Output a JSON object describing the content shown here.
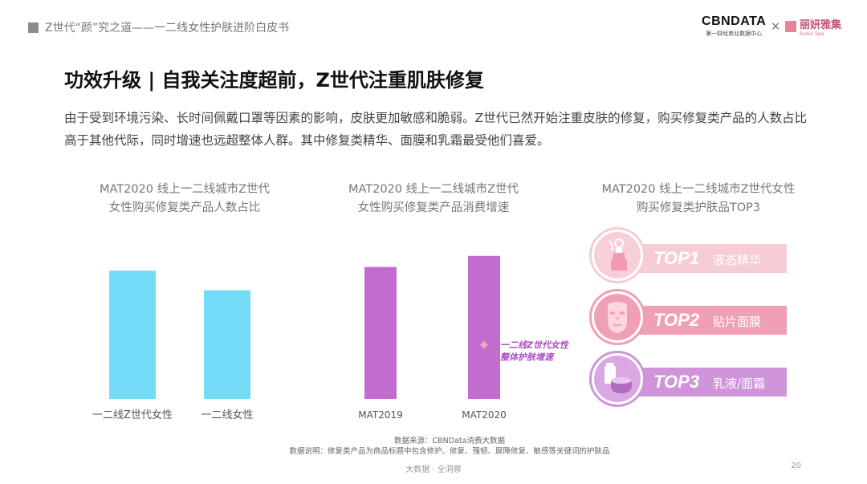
{
  "header": {
    "breadcrumb": "Z世代“颜”究之道——一二线女性护肤进阶白皮书",
    "logo_cbn": "CBNDATA",
    "logo_cbn_sub": "第一财经商业数据中心",
    "logo_times": "×",
    "logo_lyj": "丽妍雅集",
    "logo_lyj_sub": "Rubin Spa"
  },
  "title": "功效升级 | 自我关注度超前，Z世代注重肌肤修复",
  "description": "由于受到环境污染、长时间佩戴口罩等因素的影响，皮肤更加敏感和脆弱。Z世代已然开始注重皮肤的修复，购买修复类产品的人数占比高于其他代际，同时增速也远超整体人群。其中修复类精华、面膜和乳霜最受他们喜爱。",
  "chart_data": [
    {
      "type": "bar",
      "title": "MAT2020 线上一二线城市Z世代\n女性购买修复类产品人数占比",
      "categories": [
        "一二线Z世代女性",
        "一二线女性"
      ],
      "values": [
        0.85,
        0.72
      ],
      "color": "#74dbf7",
      "note": "relative values, no axis shown"
    },
    {
      "type": "bar",
      "title": "MAT2020 线上一二线城市Z世代\n女性购买修复类产品消费增速",
      "categories": [
        "MAT2019",
        "MAT2020"
      ],
      "values": [
        0.83,
        0.9
      ],
      "color": "#c16dd0",
      "marker": {
        "label": "一二线Z世代女性整体护肤增速",
        "label_lines": [
          "一二线Z世代女性",
          "整体护肤增速"
        ],
        "category": "MAT2020",
        "value": 0.34,
        "color": "#f4a6b8"
      }
    },
    {
      "type": "table",
      "title": "MAT2020 线上一二线城市Z世代女性\n购买修复类护肤品TOP3",
      "ranks": [
        {
          "rank": "TOP1",
          "name": "液态精华",
          "icon": "serum-bottle-icon"
        },
        {
          "rank": "TOP2",
          "name": "贴片面膜",
          "icon": "face-mask-icon"
        },
        {
          "rank": "TOP3",
          "name": "乳液/面霜",
          "icon": "cream-jar-icon"
        }
      ]
    }
  ],
  "footer": {
    "source": "数据来源：CBNData消费大数据",
    "note": "数据说明：修复类产品为商品标题中包含修护、修复、强韧、屏障修复、敏感等关键词的护肤品",
    "tagline": "大数据 · 全洞察",
    "page": "20"
  }
}
